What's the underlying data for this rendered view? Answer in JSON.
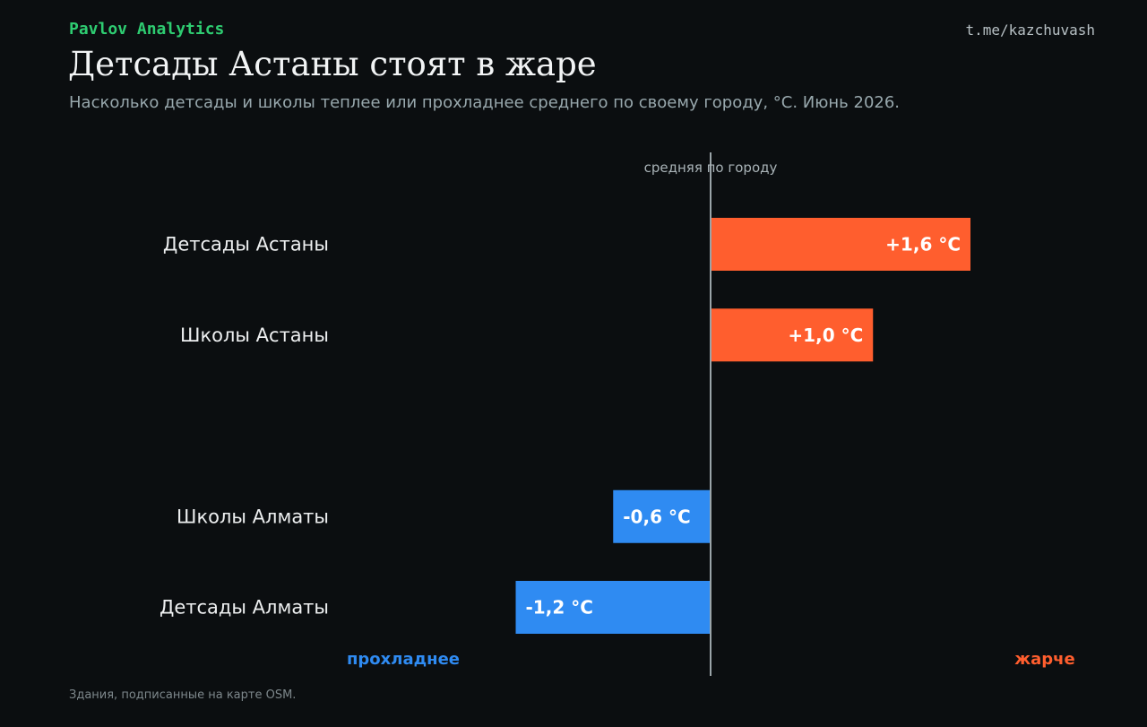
{
  "header": {
    "brand": "Pavlov Analytics",
    "handle": "t.me/kazchuvash",
    "title": "Детсады Астаны стоят в жаре",
    "subtitle": "Насколько детсады и школы теплее или прохладнее среднего по своему городу, °C. Июнь 2026."
  },
  "footer": {
    "note": "Здания, подписанные на карте OSM."
  },
  "colors": {
    "hot": "#ff5e2e",
    "cold": "#2f8bf2",
    "axis": "#9aa4a8",
    "label": "#eef0f1",
    "background": "#0b0e10"
  },
  "chart_data": {
    "type": "bar",
    "orientation": "horizontal",
    "title": "Детсады Астаны стоят в жаре",
    "subtitle": "Насколько детсады и школы теплее или прохладнее среднего по своему городу, °C. Июнь 2026.",
    "reference_line_label": "средняя по городу",
    "reference_value": 0,
    "left_direction_label": "прохладнее",
    "right_direction_label": "жарче",
    "xlim": [
      -2.0,
      2.3
    ],
    "grid": false,
    "rows": [
      {
        "category": "Детсады Астаны",
        "value": 1.6,
        "label": "+1,6 °C"
      },
      {
        "category": "Школы Астаны",
        "value": 1.0,
        "label": "+1,0 °C"
      },
      {
        "category": "",
        "value": null,
        "label": ""
      },
      {
        "category": "Школы Алматы",
        "value": -0.6,
        "label": "-0,6 °C"
      },
      {
        "category": "Детсады Алматы",
        "value": -1.2,
        "label": "-1,2 °C"
      }
    ]
  }
}
